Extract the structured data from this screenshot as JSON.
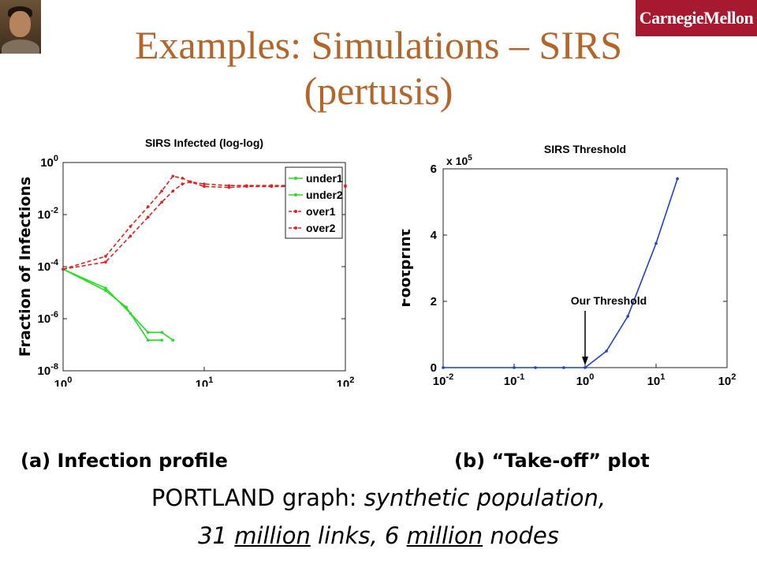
{
  "title_line1": "Examples: Simulations – SIRS",
  "title_line2": "(pertusis)",
  "logo_text": "CarnegieMellon",
  "colors": {
    "title": "#b3652a",
    "logo_bg": "#a6192e",
    "under": "#22dd22",
    "over": "#dd2222",
    "threshold_line": "#1f3fd0"
  },
  "caption_a": "(a) Infection profile",
  "caption_b": "(b) “Take-off” plot",
  "note": {
    "part1": "PORTLAND graph: ",
    "part2": "synthetic population,",
    "part3": "31 ",
    "part4": "million",
    "part5": " links, 6 ",
    "part6": "million",
    "part7": " nodes"
  },
  "chart_data": [
    {
      "type": "line",
      "title": "SIRS Infected (log-log)",
      "ylabel": "Fraction of Infections",
      "xlabel": "",
      "xscale": "log",
      "yscale": "log",
      "xlim": [
        1,
        100
      ],
      "ylim": [
        1e-08,
        1
      ],
      "legend_position": "top-right",
      "y_ticks": [
        {
          "value": 1,
          "base": "10",
          "exp": "0"
        },
        {
          "value": 0.01,
          "base": "10",
          "exp": "-2"
        },
        {
          "value": 0.0001,
          "base": "10",
          "exp": "-4"
        },
        {
          "value": 1e-06,
          "base": "10",
          "exp": "-6"
        },
        {
          "value": 1e-08,
          "base": "10",
          "exp": "-8"
        }
      ],
      "x_ticks": [
        {
          "value": 1,
          "base": "10",
          "exp": "0"
        },
        {
          "value": 10,
          "base": "10",
          "exp": "1"
        },
        {
          "value": 100,
          "base": "10",
          "exp": "2"
        }
      ],
      "series": [
        {
          "name": "under1",
          "style": "solid",
          "color": "#22dd22",
          "x": [
            1,
            2,
            3,
            4,
            5,
            6
          ],
          "y": [
            8e-05,
            1.5e-05,
            1.6e-06,
            3e-07,
            3e-07,
            1.5e-07
          ]
        },
        {
          "name": "under2",
          "style": "solid",
          "color": "#22dd22",
          "x": [
            1,
            2,
            2.8,
            4,
            5
          ],
          "y": [
            8e-05,
            1.2e-05,
            2.8e-06,
            1.5e-07,
            1.5e-07
          ]
        },
        {
          "name": "over1",
          "style": "dashed",
          "color": "#dd2222",
          "x": [
            1,
            2,
            3,
            4,
            5,
            6,
            7,
            8,
            10,
            15,
            20,
            30,
            40,
            50,
            60,
            70,
            80,
            90,
            100
          ],
          "y": [
            8e-05,
            0.00025,
            0.0035,
            0.02,
            0.08,
            0.3,
            0.25,
            0.18,
            0.15,
            0.13,
            0.13,
            0.13,
            0.13,
            0.13,
            0.13,
            0.13,
            0.13,
            0.13,
            0.13
          ]
        },
        {
          "name": "over2",
          "style": "dashed",
          "color": "#dd2222",
          "x": [
            1,
            2,
            3,
            4,
            5,
            6,
            7,
            8,
            10,
            15,
            20,
            30,
            40,
            50,
            60,
            70,
            80,
            90,
            100
          ],
          "y": [
            8e-05,
            0.00015,
            0.0015,
            0.008,
            0.03,
            0.08,
            0.15,
            0.18,
            0.12,
            0.11,
            0.12,
            0.12,
            0.12,
            0.12,
            0.12,
            0.12,
            0.12,
            0.12,
            0.12
          ]
        }
      ]
    },
    {
      "type": "line",
      "title": "SIRS Threshold",
      "ylabel": "Footprint",
      "xlabel": "",
      "xscale": "log",
      "yscale": "linear",
      "xlim": [
        0.01,
        100
      ],
      "ylim": [
        0,
        600000
      ],
      "y_multiplier": {
        "prefix": "x 10",
        "exp": "5"
      },
      "y_ticks": [
        {
          "value": 0,
          "label": "0"
        },
        {
          "value": 200000,
          "label": "2"
        },
        {
          "value": 400000,
          "label": "4"
        },
        {
          "value": 600000,
          "label": "6"
        }
      ],
      "x_ticks": [
        {
          "value": 0.01,
          "base": "10",
          "exp": "-2"
        },
        {
          "value": 0.1,
          "base": "10",
          "exp": "-1"
        },
        {
          "value": 1,
          "base": "10",
          "exp": "0"
        },
        {
          "value": 10,
          "base": "10",
          "exp": "1"
        },
        {
          "value": 100,
          "base": "10",
          "exp": "2"
        }
      ],
      "annotation": {
        "text": "Our Threshold",
        "x": 1
      },
      "series": [
        {
          "color": "#1f3fd0",
          "x": [
            0.01,
            0.1,
            0.2,
            0.5,
            1,
            2,
            4,
            10,
            20
          ],
          "y": [
            0,
            0,
            0,
            0,
            0,
            50000,
            155000,
            375000,
            570000
          ]
        }
      ]
    }
  ]
}
